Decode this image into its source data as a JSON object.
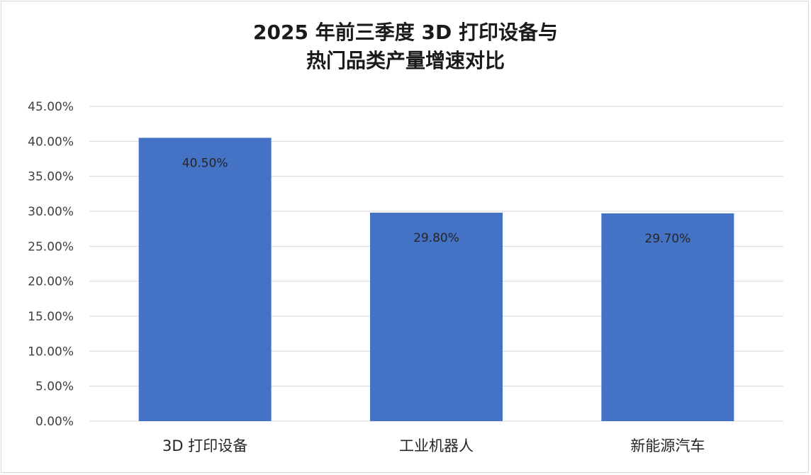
{
  "chart_data": {
    "type": "bar",
    "title_lines": [
      "2025 年前三季度 3D 打印设备与",
      "热门品类产量增速对比"
    ],
    "categories": [
      "3D 打印设备",
      "工业机器人",
      "新能源汽车"
    ],
    "values": [
      40.5,
      29.8,
      29.7
    ],
    "data_labels": [
      "40.50%",
      "29.80%",
      "29.70%"
    ],
    "y_ticks": [
      0,
      5,
      10,
      15,
      20,
      25,
      30,
      35,
      40,
      45
    ],
    "y_tick_labels": [
      "0.00%",
      "5.00%",
      "10.00%",
      "15.00%",
      "20.00%",
      "25.00%",
      "30.00%",
      "35.00%",
      "40.00%",
      "45.00%"
    ],
    "ylim": [
      0,
      45
    ],
    "grid": true,
    "legend": "none",
    "bar_color": "#4472c4",
    "grid_color": "#d9d9d9",
    "xlabel": "",
    "ylabel": ""
  }
}
